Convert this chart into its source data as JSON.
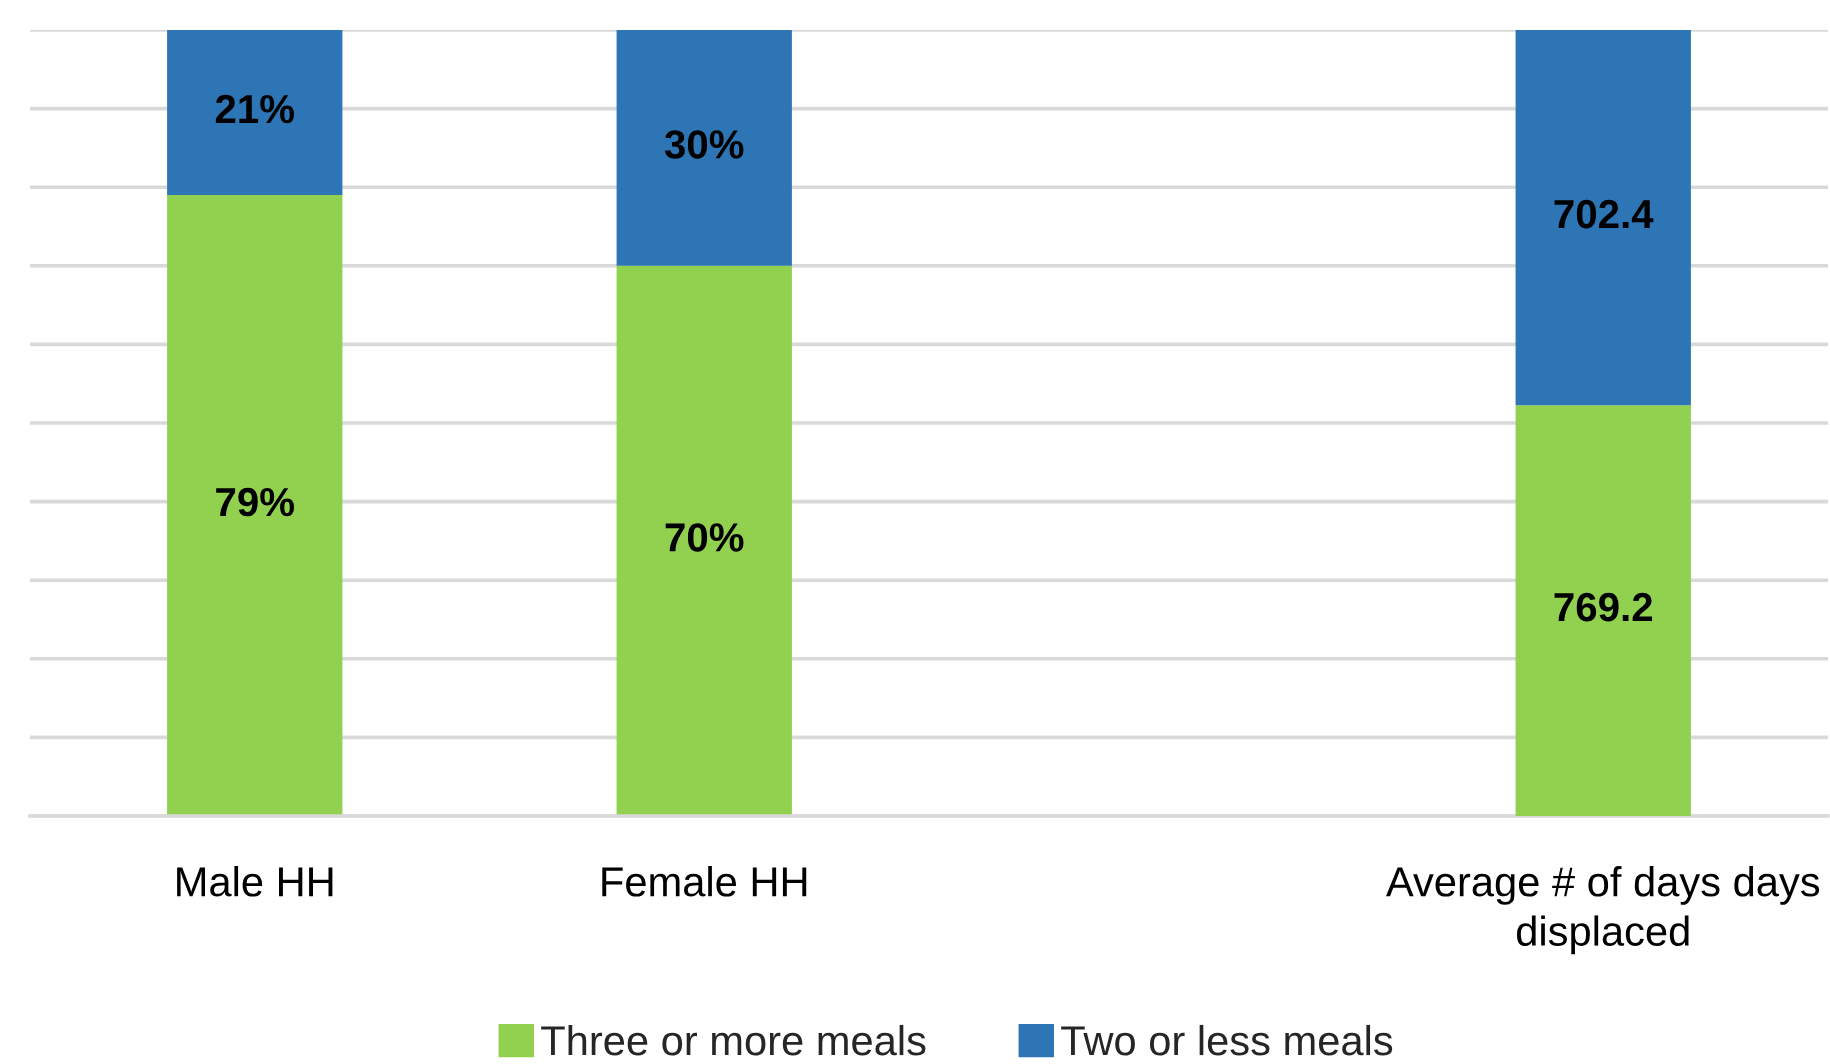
{
  "chart_data": {
    "type": "bar",
    "stacked": true,
    "categories": [
      "Male HH",
      "Female HH",
      null,
      "Average # of days days displaced"
    ],
    "series": [
      {
        "name": "Three or more meals",
        "color": "#92d050",
        "values": [
          79,
          70,
          null,
          null
        ],
        "value_labels": [
          "79%",
          "70%",
          null,
          null
        ]
      },
      {
        "name": "Two or less meals",
        "color": "#2e75b6",
        "values": [
          21,
          30,
          null,
          null
        ],
        "value_labels": [
          "21%",
          "30%",
          null,
          null
        ]
      },
      {
        "color": "#92d050",
        "axis": "y2",
        "values": [
          null,
          null,
          null,
          769.2
        ],
        "value_labels": [
          null,
          null,
          null,
          "769.2"
        ]
      },
      {
        "color": "#2e75b6",
        "axis": "y2",
        "values": [
          null,
          null,
          null,
          702.4
        ],
        "value_labels": [
          null,
          null,
          null,
          "702.4"
        ]
      }
    ],
    "ylim": [
      0,
      100
    ],
    "yticks": [
      {
        "value": 0,
        "label": null
      },
      {
        "value": 10,
        "label": null
      },
      {
        "value": 20,
        "label": null
      },
      {
        "value": 30,
        "label": null
      },
      {
        "value": 40,
        "label": null
      },
      {
        "value": 50,
        "label": null
      },
      {
        "value": 60,
        "label": null
      },
      {
        "value": 70,
        "label": null
      },
      {
        "value": 80,
        "label": null
      },
      {
        "value": 90,
        "label": null
      },
      {
        "value": 100,
        "label": null
      }
    ],
    "y2lim": [
      0,
      1471.6
    ],
    "grid": "y",
    "legend": "bottom",
    "tick_labels": "x"
  }
}
